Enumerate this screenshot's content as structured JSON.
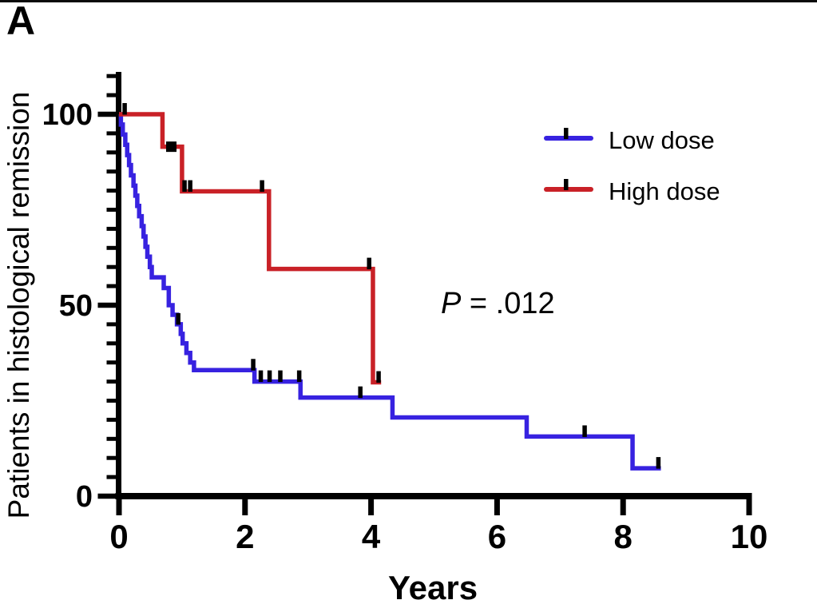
{
  "panel_label": "A",
  "annotation": {
    "p_prefix": "P",
    "p_rest": " = .012"
  },
  "chart_data": {
    "type": "line",
    "subtype": "kaplan-meier-step",
    "title": "",
    "xlabel": "Years",
    "ylabel": "Patients in histological remission",
    "xlim": [
      0,
      10
    ],
    "ylim": [
      0,
      110
    ],
    "x_ticks": [
      0,
      2,
      4,
      6,
      8,
      10
    ],
    "y_ticks_major": [
      0,
      50,
      100
    ],
    "y_minor_tick_step": 5,
    "grid": false,
    "legend_position": "upper-right",
    "p_value_text": "P = .012",
    "censor_mark_meaning": "tick marks on curves indicate censored patients",
    "series": [
      {
        "name": "Low dose",
        "color": "#3722e0",
        "steps": [
          [
            0,
            100
          ],
          [
            0.03,
            97.3
          ],
          [
            0.06,
            94.7
          ],
          [
            0.1,
            92
          ],
          [
            0.13,
            89.3
          ],
          [
            0.16,
            86.7
          ],
          [
            0.19,
            84
          ],
          [
            0.23,
            81.3
          ],
          [
            0.26,
            78.7
          ],
          [
            0.29,
            76
          ],
          [
            0.32,
            73.3
          ],
          [
            0.36,
            70.7
          ],
          [
            0.39,
            68
          ],
          [
            0.42,
            65.3
          ],
          [
            0.45,
            62.7
          ],
          [
            0.49,
            60
          ],
          [
            0.52,
            57.3
          ],
          [
            0.71,
            54.5
          ],
          [
            0.79,
            50
          ],
          [
            0.85,
            47.5
          ],
          [
            0.92,
            45
          ],
          [
            0.98,
            42.5
          ],
          [
            1.01,
            40
          ],
          [
            1.07,
            37.5
          ],
          [
            1.13,
            35
          ],
          [
            1.19,
            33
          ],
          [
            2.15,
            30
          ],
          [
            2.88,
            25.8
          ],
          [
            4.34,
            20.6
          ],
          [
            6.47,
            15.6
          ],
          [
            8.15,
            7.3
          ]
        ],
        "end_time": 8.6,
        "censor_marks": [
          [
            0.94,
            45
          ],
          [
            2.13,
            33
          ],
          [
            2.25,
            30
          ],
          [
            2.39,
            30
          ],
          [
            2.56,
            30
          ],
          [
            2.86,
            30
          ],
          [
            3.83,
            25.8
          ],
          [
            7.39,
            15.6
          ],
          [
            8.56,
            7.3
          ]
        ]
      },
      {
        "name": "High dose",
        "color": "#c92127",
        "steps": [
          [
            0,
            100
          ],
          [
            0.69,
            91.5
          ],
          [
            1.0,
            79.8
          ],
          [
            2.38,
            59.5
          ],
          [
            4.03,
            29.8
          ]
        ],
        "end_time": 4.16,
        "censor_marks": [
          [
            0.09,
            100
          ],
          [
            0.83,
            91.5,
            "sq"
          ],
          [
            1.04,
            79.8
          ],
          [
            1.13,
            79.8
          ],
          [
            2.27,
            79.8
          ],
          [
            3.97,
            59.5
          ],
          [
            4.12,
            29.8
          ]
        ]
      }
    ]
  }
}
